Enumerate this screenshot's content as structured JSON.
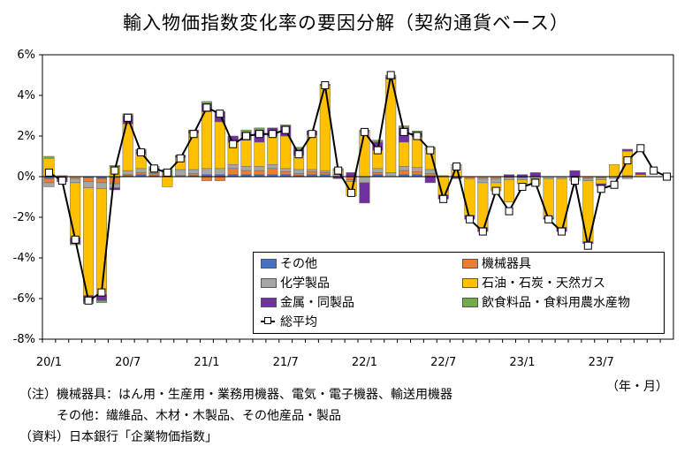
{
  "title": "輸入物価指数変化率の要因分解（契約通貨ベース）",
  "unit_label": "（年・月）",
  "notes": [
    "（注）機械器具：はん用・生産用・業務用機器、電気・電子機器、輸送用機器",
    "その他：繊維品、木材・木製品、その他産品・製品",
    "（資料）日本銀行「企業物価指数」"
  ],
  "colors": {
    "その他": "#4472c4",
    "機械器具": "#ed7d31",
    "化学製品": "#a5a5a5",
    "石油・石炭・天然ガス": "#ffc000",
    "金属・同製品": "#7030a0",
    "飲食料品・食料用農水産物": "#70ad47",
    "総平均": "#000000"
  },
  "chart_data": {
    "type": "bar",
    "stacked": true,
    "x": [
      "20/1",
      "20/2",
      "20/3",
      "20/4",
      "20/5",
      "20/6",
      "20/7",
      "20/8",
      "20/9",
      "20/10",
      "20/11",
      "20/12",
      "21/1",
      "21/2",
      "21/3",
      "21/4",
      "21/5",
      "21/6",
      "21/7",
      "21/8",
      "21/9",
      "21/10",
      "21/11",
      "21/12",
      "22/1",
      "22/2",
      "22/3",
      "22/4",
      "22/5",
      "22/6",
      "22/7",
      "22/8",
      "22/9",
      "22/10",
      "22/11",
      "22/12",
      "23/1",
      "23/2",
      "23/3",
      "23/4",
      "23/5",
      "23/6",
      "23/7",
      "23/8",
      "23/9",
      "23/10",
      "23/11",
      "23/12"
    ],
    "x_tick_labels": [
      "20/1",
      "20/7",
      "21/1",
      "21/7",
      "22/1",
      "22/7",
      "23/1",
      "23/7"
    ],
    "y_tick_labels": [
      "6%",
      "4%",
      "2%",
      "0%",
      "-2%",
      "-4%",
      "-6%",
      "-8%"
    ],
    "ylim": [
      -8,
      6
    ],
    "legend_position": "bottom-right",
    "series": [
      {
        "name": "その他",
        "values": [
          -0.1,
          0,
          0,
          -0.05,
          -0.1,
          -0.05,
          0.05,
          0.1,
          0.05,
          0,
          0,
          0.05,
          0.1,
          0.1,
          0.1,
          0.1,
          0.1,
          0.1,
          0.1,
          0.05,
          0.1,
          0.1,
          0,
          0,
          0,
          0.1,
          0,
          0.1,
          0.1,
          0.05,
          0.05,
          0,
          0,
          0,
          0,
          0,
          -0.05,
          0,
          0,
          0,
          0,
          0,
          0,
          0,
          0,
          0,
          0,
          0
        ]
      },
      {
        "name": "機械器具",
        "values": [
          -0.2,
          0.05,
          -0.1,
          -0.2,
          -0.2,
          -0.3,
          0.05,
          0.1,
          0.1,
          0,
          0.05,
          0.1,
          -0.2,
          -0.2,
          0.3,
          0.2,
          0.2,
          0.3,
          0.15,
          0.1,
          0.15,
          0.1,
          0,
          -0.15,
          0,
          0.1,
          0,
          0.2,
          0.15,
          0.1,
          0,
          0,
          -0.1,
          -0.1,
          -0.1,
          -0.05,
          0,
          0,
          0,
          0,
          0,
          -0.1,
          -0.05,
          0,
          0.05,
          0,
          0,
          0
        ]
      },
      {
        "name": "化学製品",
        "values": [
          -0.2,
          -0.05,
          -0.2,
          -0.3,
          -0.3,
          -0.2,
          0.2,
          0.2,
          0.05,
          0.05,
          0.3,
          0.2,
          0.3,
          0.3,
          0.2,
          0.2,
          0.2,
          0.2,
          0.15,
          0.2,
          0.1,
          0.1,
          0.1,
          -0.1,
          -0.3,
          0.2,
          0.2,
          0.2,
          0.2,
          0.2,
          0,
          0,
          0,
          -0.2,
          -0.2,
          -0.1,
          -0.1,
          -0.1,
          -0.1,
          -0.1,
          -0.1,
          -0.1,
          -0.1,
          -0.1,
          -0.1,
          0,
          0,
          0
        ]
      },
      {
        "name": "石油・石炭・天然ガス",
        "values": [
          0.9,
          0,
          -2.7,
          -5.3,
          -5.2,
          0.5,
          2.3,
          0.7,
          0.1,
          -0.5,
          0.6,
          1.8,
          2.8,
          2.3,
          1.1,
          1.3,
          1.2,
          1.4,
          1.6,
          0.7,
          1.7,
          4.2,
          0.2,
          -0.7,
          2.2,
          0.9,
          4.6,
          1.2,
          1.5,
          1.0,
          -0.9,
          0.6,
          -1.8,
          -2.2,
          -0.4,
          -1.1,
          -0.2,
          -0.3,
          -1.9,
          -2.4,
          -0.1,
          -3.0,
          -0.2,
          0.6,
          1.2,
          0.1,
          0,
          0
        ]
      },
      {
        "name": "金属・同製品",
        "values": [
          0,
          -0.2,
          -0.3,
          -0.3,
          -0.3,
          -0.1,
          0.4,
          0.2,
          0.1,
          0,
          0.1,
          0.1,
          0.4,
          0.5,
          0.3,
          0.4,
          0.6,
          0.4,
          0.5,
          0.3,
          0.2,
          0,
          -0.1,
          0.2,
          -1.0,
          0.4,
          0.1,
          0.7,
          0.2,
          -0.3,
          -0.2,
          -0.1,
          -0.2,
          -0.2,
          0,
          0.1,
          0.1,
          0.2,
          -0.1,
          -0.2,
          0.3,
          -0.1,
          -0.1,
          0,
          0.1,
          0.1,
          0,
          0
        ]
      },
      {
        "name": "飲食料品・食料用農水産物",
        "values": [
          0.1,
          0,
          -0.05,
          -0.1,
          -0.1,
          0.05,
          0.1,
          0.05,
          0.1,
          0.3,
          0,
          0.05,
          0.1,
          0,
          0,
          0.1,
          0.1,
          0,
          0.05,
          0.1,
          0,
          0.05,
          0.1,
          0,
          0.1,
          0.1,
          0.1,
          0.1,
          0.1,
          0.1,
          0,
          0,
          0,
          0,
          0,
          0,
          0,
          0,
          0,
          0,
          0,
          0,
          0,
          0,
          0,
          0,
          0,
          0
        ]
      },
      {
        "name": "総平均",
        "type": "line",
        "values": [
          0.2,
          -0.2,
          -3.1,
          -6.1,
          -5.7,
          0.3,
          2.9,
          1.2,
          0.4,
          0.2,
          0.9,
          2.1,
          3.4,
          3.1,
          1.6,
          2.0,
          2.1,
          2.1,
          2.3,
          1.1,
          2.1,
          4.5,
          0.3,
          -0.8,
          2.2,
          1.3,
          5.0,
          2.2,
          2.0,
          1.3,
          -1.1,
          0.5,
          -2.1,
          -2.7,
          -0.7,
          -1.7,
          -0.5,
          -0.3,
          -2.1,
          -2.7,
          -0.2,
          -3.4,
          -0.6,
          -0.4,
          0.8,
          1.4,
          0.3,
          0.0
        ]
      }
    ]
  }
}
